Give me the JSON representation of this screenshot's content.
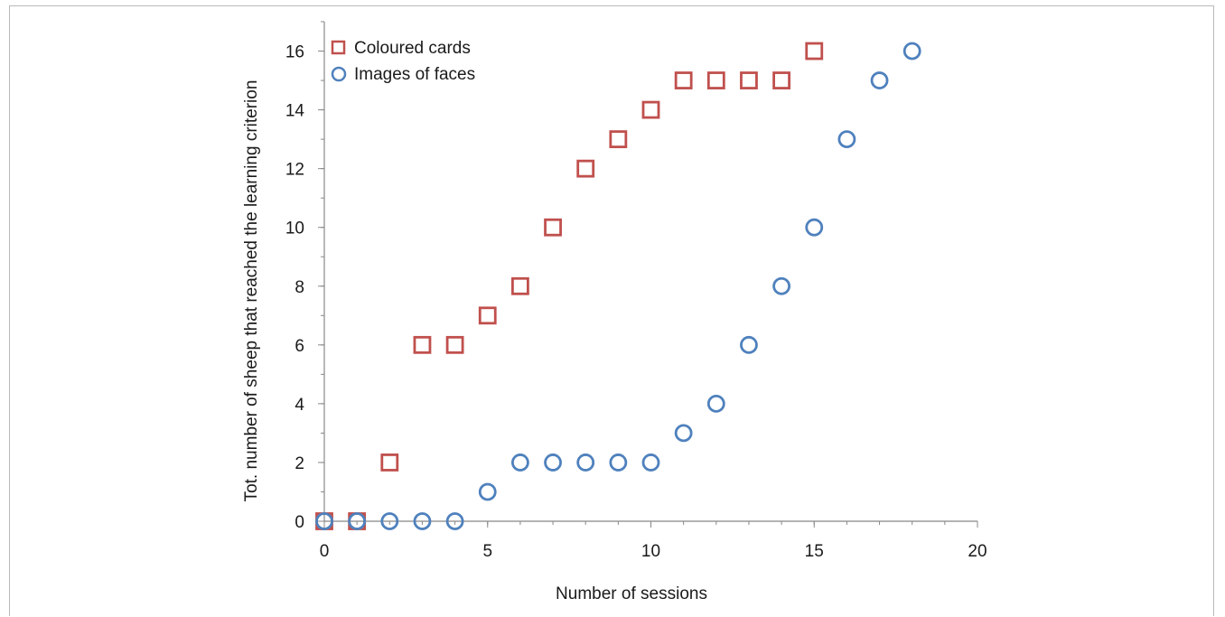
{
  "chart_data": {
    "type": "scatter",
    "title": "",
    "xlabel": "Number of sessions",
    "ylabel": "Tot. number of sheep that reached the learning criterion",
    "xlim": [
      0,
      20
    ],
    "ylim": [
      0,
      17
    ],
    "xticks": [
      0,
      5,
      10,
      15,
      20
    ],
    "yticks": [
      0,
      2,
      4,
      6,
      8,
      10,
      12,
      14,
      16
    ],
    "grid": false,
    "legend_position": "top-left",
    "series": [
      {
        "name": "Coloured cards",
        "marker": "square",
        "color": "#c0504d",
        "x": [
          0,
          1,
          2,
          3,
          4,
          5,
          6,
          7,
          8,
          9,
          10,
          11,
          12,
          13,
          14,
          15
        ],
        "y": [
          0,
          0,
          2,
          6,
          6,
          7,
          8,
          10,
          12,
          13,
          14,
          15,
          15,
          15,
          15,
          16
        ]
      },
      {
        "name": "Images of faces",
        "marker": "circle",
        "color": "#4f81bd",
        "x": [
          0,
          1,
          2,
          3,
          4,
          5,
          6,
          7,
          8,
          9,
          10,
          11,
          12,
          13,
          14,
          15,
          16,
          17,
          18
        ],
        "y": [
          0,
          0,
          0,
          0,
          0,
          1,
          2,
          2,
          2,
          2,
          2,
          3,
          4,
          6,
          8,
          10,
          13,
          15,
          16
        ]
      }
    ]
  }
}
